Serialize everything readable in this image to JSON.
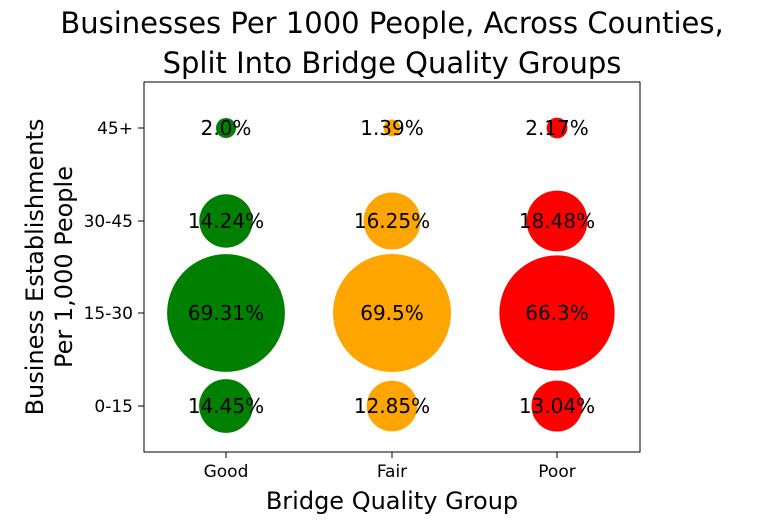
{
  "chart_data": {
    "type": "scatter",
    "title_lines": [
      "Businesses Per 1000 People, Across Counties,",
      "Split Into Bridge Quality Groups"
    ],
    "xlabel": "Bridge Quality Group",
    "ylabel_lines": [
      "Business Establishments",
      "Per 1,000 People"
    ],
    "categories": [
      "Good",
      "Fair",
      "Poor"
    ],
    "y_categories": [
      "0-15",
      "15-30",
      "30-45",
      "45+"
    ],
    "grid": false,
    "series": [
      {
        "category": "Good",
        "color": "#008000",
        "values": [
          14.45,
          69.31,
          14.24,
          2.0
        ],
        "labels": [
          "14.45%",
          "69.31%",
          "14.24%",
          "2.0%"
        ]
      },
      {
        "category": "Fair",
        "color": "#FFA500",
        "values": [
          12.85,
          69.5,
          16.25,
          1.39
        ],
        "labels": [
          "12.85%",
          "69.5%",
          "16.25%",
          "1.39%"
        ]
      },
      {
        "category": "Poor",
        "color": "#FF0000",
        "values": [
          13.04,
          66.3,
          18.48,
          2.17
        ],
        "labels": [
          "13.04%",
          "66.3%",
          "18.48%",
          "2.17%"
        ]
      }
    ]
  }
}
